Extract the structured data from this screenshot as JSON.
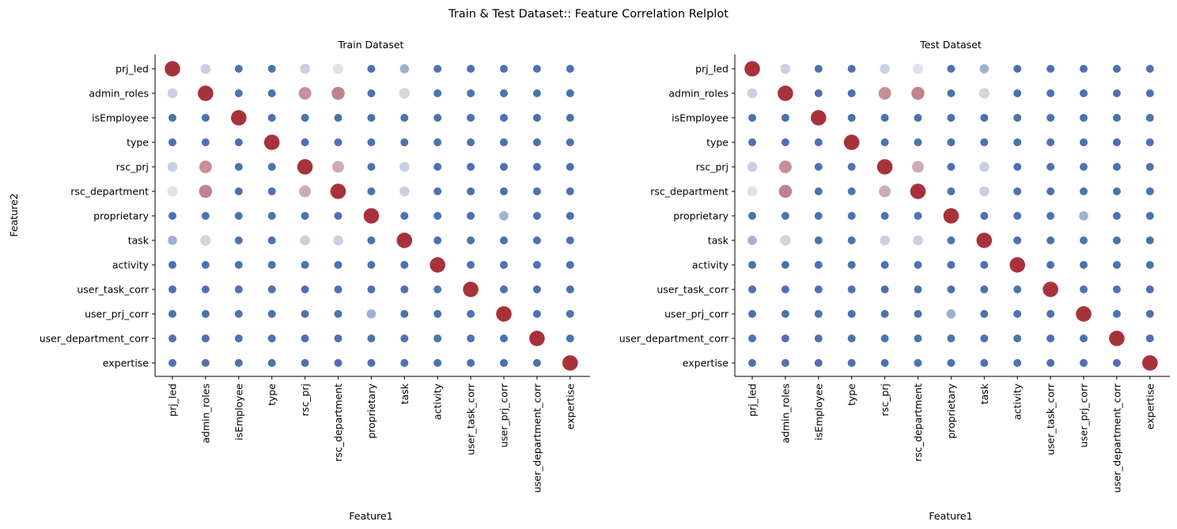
{
  "figure": {
    "title": "Train & Test Dataset:: Feature Correlation Relplot"
  },
  "chart_data": [
    {
      "type": "scatter",
      "title": "Train Dataset",
      "xlabel": "Feature1",
      "ylabel": "Feature2",
      "features": [
        "prj_led",
        "admin_roles",
        "isEmployee",
        "type",
        "rsc_prj",
        "rsc_department",
        "proprietary",
        "task",
        "activity",
        "user_task_corr",
        "user_prj_corr",
        "user_department_corr",
        "expertise"
      ],
      "grid": false,
      "value_encoding": "point size and color encode correlation magnitude (blue = low, dark red = high)",
      "correlation_matrix": [
        [
          1.0,
          0.3,
          0.0,
          0.0,
          0.3,
          0.35,
          0.0,
          0.2,
          0.0,
          0.0,
          0.0,
          0.0,
          0.0
        ],
        [
          0.3,
          1.0,
          0.0,
          0.0,
          0.65,
          0.7,
          0.0,
          0.4,
          0.0,
          0.0,
          0.0,
          0.0,
          0.0
        ],
        [
          0.0,
          0.0,
          1.0,
          0.0,
          0.0,
          0.0,
          0.0,
          0.0,
          0.0,
          0.0,
          0.0,
          0.0,
          0.0
        ],
        [
          0.0,
          0.0,
          0.0,
          1.0,
          0.0,
          0.0,
          0.0,
          0.0,
          0.0,
          0.0,
          0.0,
          0.0,
          0.0
        ],
        [
          0.3,
          0.65,
          0.0,
          0.0,
          1.0,
          0.55,
          0.0,
          0.3,
          0.0,
          0.0,
          0.0,
          0.0,
          0.0
        ],
        [
          0.35,
          0.7,
          0.0,
          0.0,
          0.55,
          1.0,
          0.0,
          0.3,
          0.0,
          0.0,
          0.0,
          0.0,
          0.0
        ],
        [
          0.0,
          0.0,
          0.0,
          0.0,
          0.0,
          0.0,
          1.0,
          0.0,
          0.0,
          0.0,
          0.2,
          0.0,
          0.0
        ],
        [
          0.2,
          0.4,
          0.0,
          0.0,
          0.3,
          0.3,
          0.0,
          1.0,
          0.0,
          0.0,
          0.0,
          0.0,
          0.0
        ],
        [
          0.0,
          0.0,
          0.0,
          0.0,
          0.0,
          0.0,
          0.0,
          0.0,
          1.0,
          0.0,
          0.0,
          0.0,
          0.0
        ],
        [
          0.0,
          0.0,
          0.0,
          0.0,
          0.0,
          0.0,
          0.0,
          0.0,
          0.0,
          1.0,
          0.0,
          0.0,
          0.0
        ],
        [
          0.0,
          0.0,
          0.0,
          0.0,
          0.0,
          0.0,
          0.2,
          0.0,
          0.0,
          0.0,
          1.0,
          0.0,
          0.0
        ],
        [
          0.0,
          0.0,
          0.0,
          0.0,
          0.0,
          0.0,
          0.0,
          0.0,
          0.0,
          0.0,
          0.0,
          1.0,
          0.0
        ],
        [
          0.0,
          0.0,
          0.0,
          0.0,
          0.0,
          0.0,
          0.0,
          0.0,
          0.0,
          0.0,
          0.0,
          0.0,
          1.0
        ]
      ]
    },
    {
      "type": "scatter",
      "title": "Test Dataset",
      "xlabel": "Feature1",
      "ylabel": "",
      "features": [
        "prj_led",
        "admin_roles",
        "isEmployee",
        "type",
        "rsc_prj",
        "rsc_department",
        "proprietary",
        "task",
        "activity",
        "user_task_corr",
        "user_prj_corr",
        "user_department_corr",
        "expertise"
      ],
      "grid": false,
      "value_encoding": "point size and color encode correlation magnitude (blue = low, dark red = high)",
      "correlation_matrix": [
        [
          1.0,
          0.3,
          0.0,
          0.0,
          0.3,
          0.35,
          0.0,
          0.2,
          0.0,
          0.0,
          0.0,
          0.0,
          0.0
        ],
        [
          0.3,
          1.0,
          0.0,
          0.0,
          0.65,
          0.7,
          0.0,
          0.4,
          0.0,
          0.0,
          0.0,
          0.0,
          0.0
        ],
        [
          0.0,
          0.0,
          1.0,
          0.0,
          0.0,
          0.0,
          0.0,
          0.0,
          0.0,
          0.0,
          0.0,
          0.0,
          0.0
        ],
        [
          0.0,
          0.0,
          0.0,
          1.0,
          0.0,
          0.0,
          0.0,
          0.0,
          0.0,
          0.0,
          0.0,
          0.0,
          0.0
        ],
        [
          0.3,
          0.65,
          0.0,
          0.0,
          1.0,
          0.55,
          0.0,
          0.3,
          0.0,
          0.0,
          0.0,
          0.0,
          0.0
        ],
        [
          0.35,
          0.7,
          0.0,
          0.0,
          0.55,
          1.0,
          0.0,
          0.3,
          0.0,
          0.0,
          0.0,
          0.0,
          0.0
        ],
        [
          0.0,
          0.0,
          0.0,
          0.0,
          0.0,
          0.0,
          1.0,
          0.0,
          0.0,
          0.0,
          0.2,
          0.0,
          0.0
        ],
        [
          0.2,
          0.4,
          0.0,
          0.0,
          0.3,
          0.3,
          0.0,
          1.0,
          0.0,
          0.0,
          0.0,
          0.0,
          0.0
        ],
        [
          0.0,
          0.0,
          0.0,
          0.0,
          0.0,
          0.0,
          0.0,
          0.0,
          1.0,
          0.0,
          0.0,
          0.0,
          0.0
        ],
        [
          0.0,
          0.0,
          0.0,
          0.0,
          0.0,
          0.0,
          0.0,
          0.0,
          0.0,
          1.0,
          0.0,
          0.0,
          0.0
        ],
        [
          0.0,
          0.0,
          0.0,
          0.0,
          0.0,
          0.0,
          0.2,
          0.0,
          0.0,
          0.0,
          1.0,
          0.0,
          0.0
        ],
        [
          0.0,
          0.0,
          0.0,
          0.0,
          0.0,
          0.0,
          0.0,
          0.0,
          0.0,
          0.0,
          0.0,
          1.0,
          0.0
        ],
        [
          0.0,
          0.0,
          0.0,
          0.0,
          0.0,
          0.0,
          0.0,
          0.0,
          0.0,
          0.0,
          0.0,
          0.0,
          1.0
        ]
      ]
    }
  ],
  "colors": {
    "low": "#4c72b0",
    "mid": "#dde1ea",
    "high": "#a8323a"
  }
}
